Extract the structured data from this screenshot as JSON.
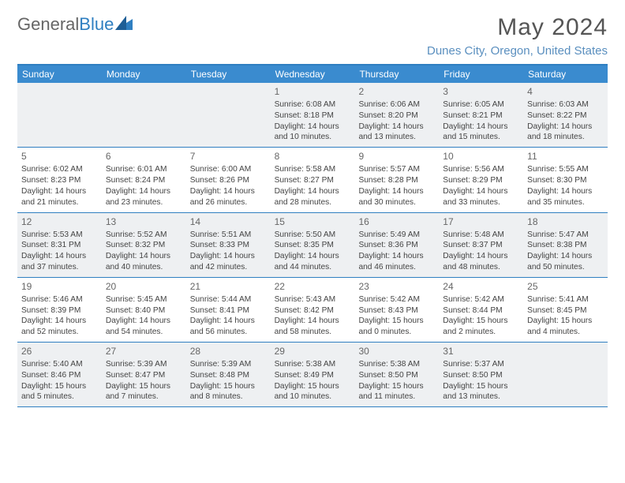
{
  "logo": {
    "part1": "General",
    "part2": "Blue"
  },
  "title": "May 2024",
  "location": "Dunes City, Oregon, United States",
  "colors": {
    "header_bg": "#3a8bcf",
    "border": "#2f7fc1",
    "shade": "#eef0f2",
    "title_text": "#555",
    "location_text": "#5a8fbf"
  },
  "day_names": [
    "Sunday",
    "Monday",
    "Tuesday",
    "Wednesday",
    "Thursday",
    "Friday",
    "Saturday"
  ],
  "weeks": [
    [
      null,
      null,
      null,
      {
        "n": "1",
        "sr": "Sunrise: 6:08 AM",
        "ss": "Sunset: 8:18 PM",
        "d1": "Daylight: 14 hours",
        "d2": "and 10 minutes."
      },
      {
        "n": "2",
        "sr": "Sunrise: 6:06 AM",
        "ss": "Sunset: 8:20 PM",
        "d1": "Daylight: 14 hours",
        "d2": "and 13 minutes."
      },
      {
        "n": "3",
        "sr": "Sunrise: 6:05 AM",
        "ss": "Sunset: 8:21 PM",
        "d1": "Daylight: 14 hours",
        "d2": "and 15 minutes."
      },
      {
        "n": "4",
        "sr": "Sunrise: 6:03 AM",
        "ss": "Sunset: 8:22 PM",
        "d1": "Daylight: 14 hours",
        "d2": "and 18 minutes."
      }
    ],
    [
      {
        "n": "5",
        "sr": "Sunrise: 6:02 AM",
        "ss": "Sunset: 8:23 PM",
        "d1": "Daylight: 14 hours",
        "d2": "and 21 minutes."
      },
      {
        "n": "6",
        "sr": "Sunrise: 6:01 AM",
        "ss": "Sunset: 8:24 PM",
        "d1": "Daylight: 14 hours",
        "d2": "and 23 minutes."
      },
      {
        "n": "7",
        "sr": "Sunrise: 6:00 AM",
        "ss": "Sunset: 8:26 PM",
        "d1": "Daylight: 14 hours",
        "d2": "and 26 minutes."
      },
      {
        "n": "8",
        "sr": "Sunrise: 5:58 AM",
        "ss": "Sunset: 8:27 PM",
        "d1": "Daylight: 14 hours",
        "d2": "and 28 minutes."
      },
      {
        "n": "9",
        "sr": "Sunrise: 5:57 AM",
        "ss": "Sunset: 8:28 PM",
        "d1": "Daylight: 14 hours",
        "d2": "and 30 minutes."
      },
      {
        "n": "10",
        "sr": "Sunrise: 5:56 AM",
        "ss": "Sunset: 8:29 PM",
        "d1": "Daylight: 14 hours",
        "d2": "and 33 minutes."
      },
      {
        "n": "11",
        "sr": "Sunrise: 5:55 AM",
        "ss": "Sunset: 8:30 PM",
        "d1": "Daylight: 14 hours",
        "d2": "and 35 minutes."
      }
    ],
    [
      {
        "n": "12",
        "sr": "Sunrise: 5:53 AM",
        "ss": "Sunset: 8:31 PM",
        "d1": "Daylight: 14 hours",
        "d2": "and 37 minutes."
      },
      {
        "n": "13",
        "sr": "Sunrise: 5:52 AM",
        "ss": "Sunset: 8:32 PM",
        "d1": "Daylight: 14 hours",
        "d2": "and 40 minutes."
      },
      {
        "n": "14",
        "sr": "Sunrise: 5:51 AM",
        "ss": "Sunset: 8:33 PM",
        "d1": "Daylight: 14 hours",
        "d2": "and 42 minutes."
      },
      {
        "n": "15",
        "sr": "Sunrise: 5:50 AM",
        "ss": "Sunset: 8:35 PM",
        "d1": "Daylight: 14 hours",
        "d2": "and 44 minutes."
      },
      {
        "n": "16",
        "sr": "Sunrise: 5:49 AM",
        "ss": "Sunset: 8:36 PM",
        "d1": "Daylight: 14 hours",
        "d2": "and 46 minutes."
      },
      {
        "n": "17",
        "sr": "Sunrise: 5:48 AM",
        "ss": "Sunset: 8:37 PM",
        "d1": "Daylight: 14 hours",
        "d2": "and 48 minutes."
      },
      {
        "n": "18",
        "sr": "Sunrise: 5:47 AM",
        "ss": "Sunset: 8:38 PM",
        "d1": "Daylight: 14 hours",
        "d2": "and 50 minutes."
      }
    ],
    [
      {
        "n": "19",
        "sr": "Sunrise: 5:46 AM",
        "ss": "Sunset: 8:39 PM",
        "d1": "Daylight: 14 hours",
        "d2": "and 52 minutes."
      },
      {
        "n": "20",
        "sr": "Sunrise: 5:45 AM",
        "ss": "Sunset: 8:40 PM",
        "d1": "Daylight: 14 hours",
        "d2": "and 54 minutes."
      },
      {
        "n": "21",
        "sr": "Sunrise: 5:44 AM",
        "ss": "Sunset: 8:41 PM",
        "d1": "Daylight: 14 hours",
        "d2": "and 56 minutes."
      },
      {
        "n": "22",
        "sr": "Sunrise: 5:43 AM",
        "ss": "Sunset: 8:42 PM",
        "d1": "Daylight: 14 hours",
        "d2": "and 58 minutes."
      },
      {
        "n": "23",
        "sr": "Sunrise: 5:42 AM",
        "ss": "Sunset: 8:43 PM",
        "d1": "Daylight: 15 hours",
        "d2": "and 0 minutes."
      },
      {
        "n": "24",
        "sr": "Sunrise: 5:42 AM",
        "ss": "Sunset: 8:44 PM",
        "d1": "Daylight: 15 hours",
        "d2": "and 2 minutes."
      },
      {
        "n": "25",
        "sr": "Sunrise: 5:41 AM",
        "ss": "Sunset: 8:45 PM",
        "d1": "Daylight: 15 hours",
        "d2": "and 4 minutes."
      }
    ],
    [
      {
        "n": "26",
        "sr": "Sunrise: 5:40 AM",
        "ss": "Sunset: 8:46 PM",
        "d1": "Daylight: 15 hours",
        "d2": "and 5 minutes."
      },
      {
        "n": "27",
        "sr": "Sunrise: 5:39 AM",
        "ss": "Sunset: 8:47 PM",
        "d1": "Daylight: 15 hours",
        "d2": "and 7 minutes."
      },
      {
        "n": "28",
        "sr": "Sunrise: 5:39 AM",
        "ss": "Sunset: 8:48 PM",
        "d1": "Daylight: 15 hours",
        "d2": "and 8 minutes."
      },
      {
        "n": "29",
        "sr": "Sunrise: 5:38 AM",
        "ss": "Sunset: 8:49 PM",
        "d1": "Daylight: 15 hours",
        "d2": "and 10 minutes."
      },
      {
        "n": "30",
        "sr": "Sunrise: 5:38 AM",
        "ss": "Sunset: 8:50 PM",
        "d1": "Daylight: 15 hours",
        "d2": "and 11 minutes."
      },
      {
        "n": "31",
        "sr": "Sunrise: 5:37 AM",
        "ss": "Sunset: 8:50 PM",
        "d1": "Daylight: 15 hours",
        "d2": "and 13 minutes."
      },
      null
    ]
  ]
}
